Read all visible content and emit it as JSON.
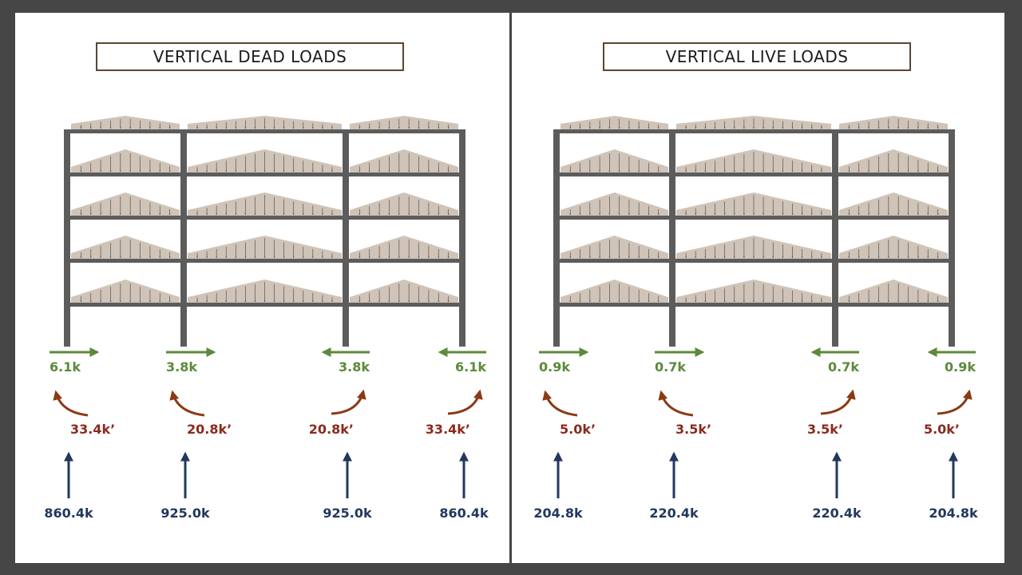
{
  "panels": [
    {
      "title": "VERTICAL DEAD LOADS",
      "supports": [
        {
          "shear": "6.1k",
          "shear_dir": "right",
          "moment": "33.4k’",
          "axial": "860.4k"
        },
        {
          "shear": "3.8k",
          "shear_dir": "right",
          "moment": "20.8k’",
          "axial": "925.0k"
        },
        {
          "shear": "3.8k",
          "shear_dir": "left",
          "moment": "20.8k’",
          "axial": "925.0k"
        },
        {
          "shear": "6.1k",
          "shear_dir": "left",
          "moment": "33.4k’",
          "axial": "860.4k"
        }
      ]
    },
    {
      "title": "VERTICAL LIVE LOADS",
      "supports": [
        {
          "shear": "0.9k",
          "shear_dir": "right",
          "moment": "5.0k’",
          "axial": "204.8k"
        },
        {
          "shear": "0.7k",
          "shear_dir": "right",
          "moment": "3.5k’",
          "axial": "220.4k"
        },
        {
          "shear": "0.7k",
          "shear_dir": "left",
          "moment": "3.5k’",
          "axial": "220.4k"
        },
        {
          "shear": "0.9k",
          "shear_dir": "left",
          "moment": "5.0k’",
          "axial": "204.8k"
        }
      ]
    }
  ],
  "colors": {
    "background": "#464646",
    "frame": "#5c5c5c",
    "load": "#cbbdb0",
    "shear": "#5b8a3a",
    "moment": "#8b3a14",
    "axial": "#22385e"
  },
  "icons": {
    "shear": "horizontal-arrow",
    "moment": "curved-arrow",
    "axial": "vertical-arrow"
  }
}
